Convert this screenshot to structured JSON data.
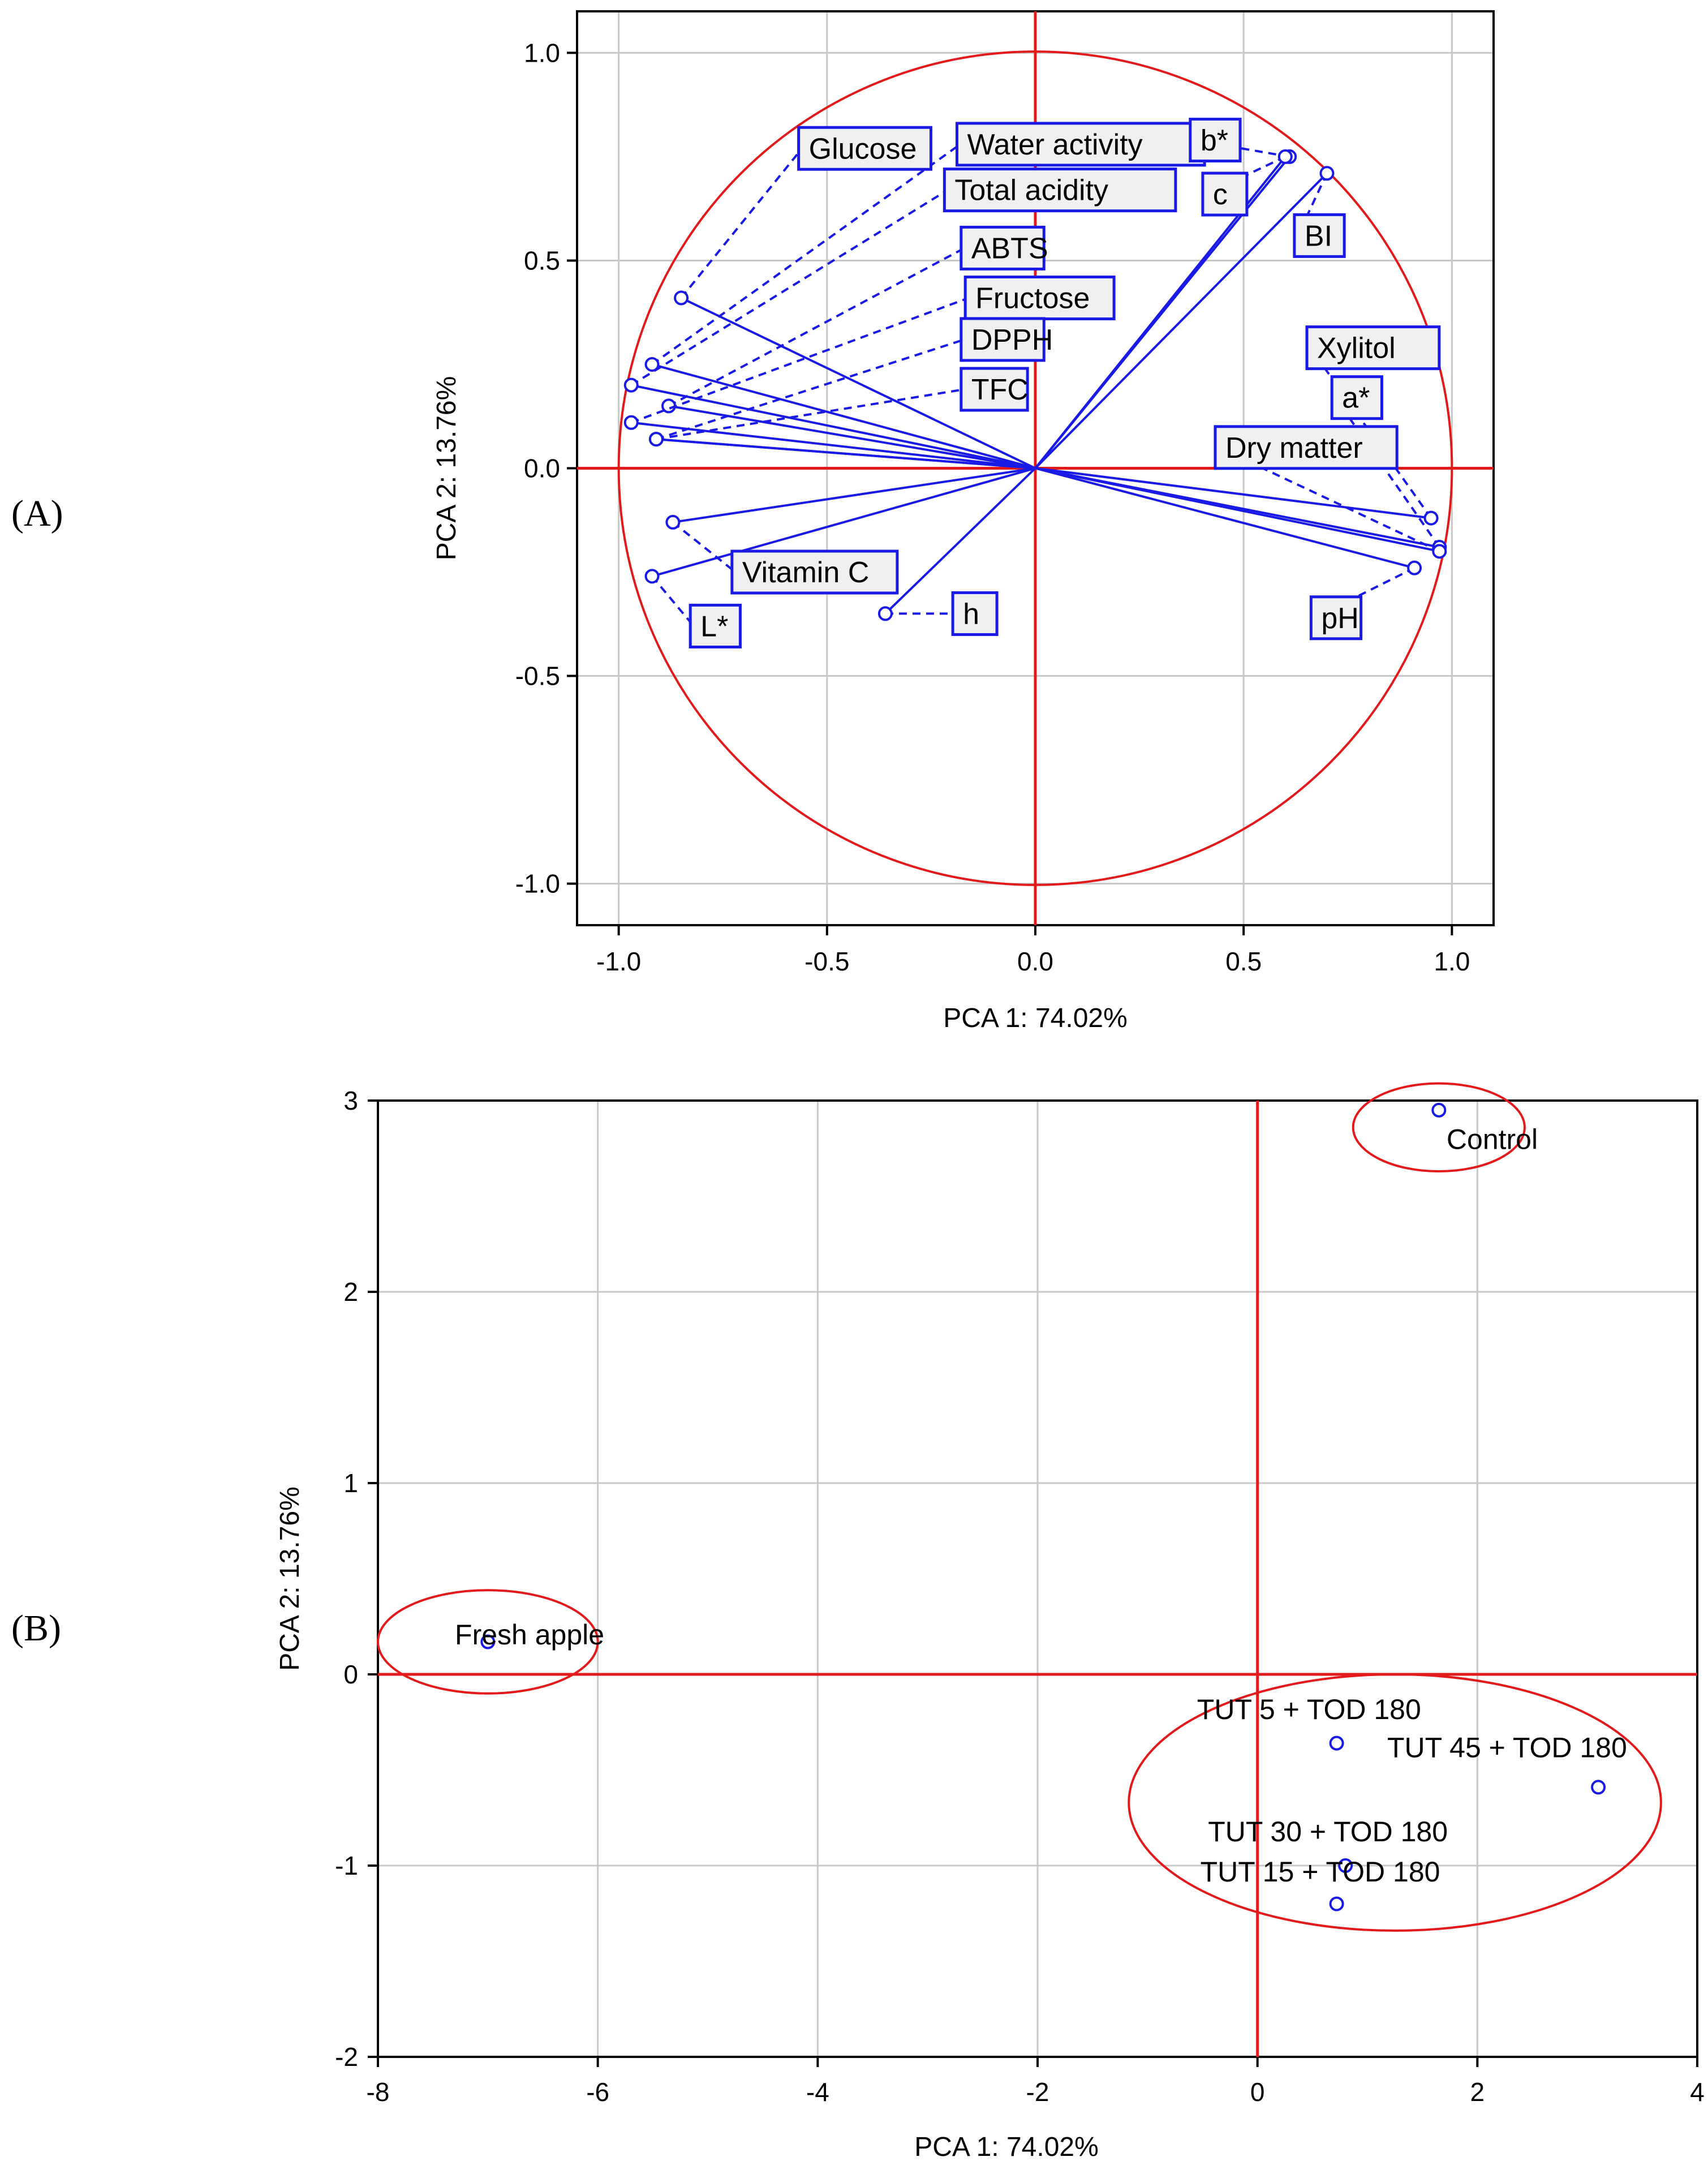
{
  "panel_letters": {
    "a": "(A)",
    "b": "(B)"
  },
  "chart_data": [
    {
      "type": "scatter",
      "subtype": "pca-loading-plot",
      "panel": "A",
      "xlabel": "PCA 1: 74.02%",
      "ylabel": "PCA 2: 13.76%",
      "xlim": [
        -1.1,
        1.1
      ],
      "ylim": [
        -1.1,
        1.1
      ],
      "xticks": [
        -1.0,
        -0.5,
        0.0,
        0.5,
        1.0
      ],
      "yticks": [
        -1.0,
        -0.5,
        0.0,
        0.5,
        1.0
      ],
      "xtick_labels": [
        "-1.0",
        "-0.5",
        "0.0",
        "0.5",
        "1.0"
      ],
      "ytick_labels": [
        "-1.0",
        "-0.5",
        "0.0",
        "0.5",
        "1.0"
      ],
      "grid": true,
      "unit_circle": true,
      "colors": {
        "vectors": "#1a1ae6",
        "axes": "#e31a1c",
        "grid": "#c8c8c8"
      },
      "points": [
        {
          "name": "Glucose",
          "x": -0.85,
          "y": 0.41,
          "label_x": -0.56,
          "label_y": 0.77
        },
        {
          "name": "Water activity",
          "x": -0.92,
          "y": 0.25,
          "label_x": -0.18,
          "label_y": 0.78
        },
        {
          "name": "Total acidity",
          "x": -0.97,
          "y": 0.2,
          "label_x": -0.21,
          "label_y": 0.67
        },
        {
          "name": "ABTS",
          "x": -0.88,
          "y": 0.15,
          "label_x": -0.17,
          "label_y": 0.53
        },
        {
          "name": "Fructose",
          "x": -0.97,
          "y": 0.11,
          "label_x": -0.16,
          "label_y": 0.41
        },
        {
          "name": "DPPH",
          "x": -0.91,
          "y": 0.07,
          "label_x": -0.17,
          "label_y": 0.31
        },
        {
          "name": "TFC",
          "x": -0.91,
          "y": 0.07,
          "label_x": -0.17,
          "label_y": 0.19
        },
        {
          "name": "Vitamin C",
          "x": -0.87,
          "y": -0.13,
          "label_x": -0.72,
          "label_y": -0.25
        },
        {
          "name": "L*",
          "x": -0.92,
          "y": -0.26,
          "label_x": -0.82,
          "label_y": -0.38
        },
        {
          "name": "h",
          "x": -0.36,
          "y": -0.35,
          "label_x": -0.19,
          "label_y": -0.35
        },
        {
          "name": "b*",
          "x": 0.61,
          "y": 0.75,
          "label_x": 0.38,
          "label_y": 0.79
        },
        {
          "name": "c",
          "x": 0.6,
          "y": 0.75,
          "label_x": 0.41,
          "label_y": 0.66
        },
        {
          "name": "BI",
          "x": 0.7,
          "y": 0.71,
          "label_x": 0.63,
          "label_y": 0.56
        },
        {
          "name": "Xylitol",
          "x": 0.95,
          "y": -0.12,
          "label_x": 0.66,
          "label_y": 0.29
        },
        {
          "name": "a*",
          "x": 0.97,
          "y": -0.19,
          "label_x": 0.72,
          "label_y": 0.17
        },
        {
          "name": "Dry matter",
          "x": 0.97,
          "y": -0.2,
          "label_x": 0.44,
          "label_y": 0.05
        },
        {
          "name": "pH",
          "x": 0.91,
          "y": -0.24,
          "label_x": 0.67,
          "label_y": -0.36
        }
      ]
    },
    {
      "type": "scatter",
      "subtype": "pca-score-plot",
      "panel": "B",
      "xlabel": "PCA 1: 74.02%",
      "ylabel": "PCA 2: 13.76%",
      "xlim": [
        -8,
        4
      ],
      "ylim": [
        -2,
        3
      ],
      "xticks": [
        -8,
        -6,
        -4,
        -2,
        0,
        2,
        4
      ],
      "yticks": [
        -2,
        -1,
        0,
        1,
        2,
        3
      ],
      "xtick_labels": [
        "-8",
        "-6",
        "-4",
        "-2",
        "0",
        "2",
        "4"
      ],
      "ytick_labels": [
        "-2",
        "-1",
        "0",
        "1",
        "2",
        "3"
      ],
      "grid": true,
      "colors": {
        "points": "#1a1ae6",
        "axes": "#e31a1c",
        "grid": "#c8c8c8"
      },
      "points": [
        {
          "name": "Control",
          "x": 1.65,
          "y": 2.95,
          "label_x": 1.72,
          "label_y": 2.8
        },
        {
          "name": "Fresh apple",
          "x": -7.0,
          "y": 0.17,
          "label_x": -7.3,
          "label_y": 0.21
        },
        {
          "name": "TUT 5 + TOD 180",
          "x": 0.72,
          "y": -0.36,
          "label_x": -0.55,
          "label_y": -0.18
        },
        {
          "name": "TUT 45 + TOD 180",
          "x": 3.1,
          "y": -0.59,
          "label_x": 1.18,
          "label_y": -0.38
        },
        {
          "name": "TUT 30 + TOD 180",
          "x": 0.8,
          "y": -1.0,
          "label_x": -0.45,
          "label_y": -0.82
        },
        {
          "name": "TUT 15 + TOD 180",
          "x": 0.72,
          "y": -1.2,
          "label_x": -0.52,
          "label_y": -1.03
        }
      ],
      "group_ellipses": [
        {
          "members": [
            "Control"
          ],
          "cx": 1.65,
          "cy": 2.86,
          "rx": 0.78,
          "ry": 0.23
        },
        {
          "members": [
            "Fresh apple"
          ],
          "cx": -7.0,
          "cy": 0.17,
          "rx": 1.0,
          "ry": 0.27
        },
        {
          "members": [
            "TUT 5 + TOD 180",
            "TUT 45 + TOD 180",
            "TUT 30 + TOD 180",
            "TUT 15 + TOD 180"
          ],
          "cx": 1.25,
          "cy": -0.67,
          "rx": 2.42,
          "ry": 0.67
        }
      ]
    }
  ]
}
